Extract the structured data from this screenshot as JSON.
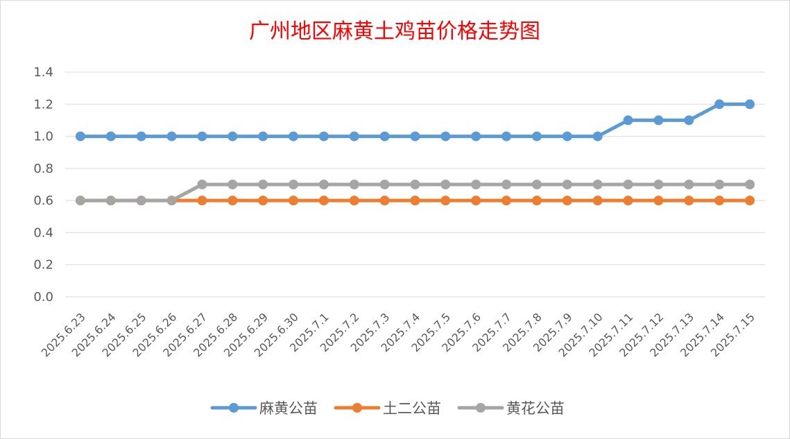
{
  "chart_data": {
    "type": "line",
    "title": "广州地区麻黄土鸡苗价格走势图",
    "xlabel": "",
    "ylabel": "",
    "ylim": [
      0,
      1.4
    ],
    "yticks": [
      "0.0",
      "0.2",
      "0.4",
      "0.6",
      "0.8",
      "1.0",
      "1.2",
      "1.4"
    ],
    "grid": true,
    "legend_position": "bottom",
    "x": [
      "2025.6.23",
      "2025.6.24",
      "2025.6.25",
      "2025.6.26",
      "2025.6.27",
      "2025.6.28",
      "2025.6.29",
      "2025.6.30",
      "2025.7.1",
      "2025.7.2",
      "2025.7.3",
      "2025.7.4",
      "2025.7.5",
      "2025.7.6",
      "2025.7.7",
      "2025.7.8",
      "2025.7.9",
      "2025.7.10",
      "2025.7.11",
      "2025.7.12",
      "2025.7.13",
      "2025.7.14",
      "2025.7.15"
    ],
    "series": [
      {
        "name": "麻黄公苗",
        "color": "#5b9bd5",
        "values": [
          1.0,
          1.0,
          1.0,
          1.0,
          1.0,
          1.0,
          1.0,
          1.0,
          1.0,
          1.0,
          1.0,
          1.0,
          1.0,
          1.0,
          1.0,
          1.0,
          1.0,
          1.0,
          1.1,
          1.1,
          1.1,
          1.2,
          1.2
        ]
      },
      {
        "name": "土二公苗",
        "color": "#ed7d31",
        "values": [
          0.6,
          0.6,
          0.6,
          0.6,
          0.6,
          0.6,
          0.6,
          0.6,
          0.6,
          0.6,
          0.6,
          0.6,
          0.6,
          0.6,
          0.6,
          0.6,
          0.6,
          0.6,
          0.6,
          0.6,
          0.6,
          0.6,
          0.6
        ]
      },
      {
        "name": "黄花公苗",
        "color": "#a5a5a5",
        "values": [
          0.6,
          0.6,
          0.6,
          0.6,
          0.7,
          0.7,
          0.7,
          0.7,
          0.7,
          0.7,
          0.7,
          0.7,
          0.7,
          0.7,
          0.7,
          0.7,
          0.7,
          0.7,
          0.7,
          0.7,
          0.7,
          0.7,
          0.7
        ]
      }
    ]
  }
}
